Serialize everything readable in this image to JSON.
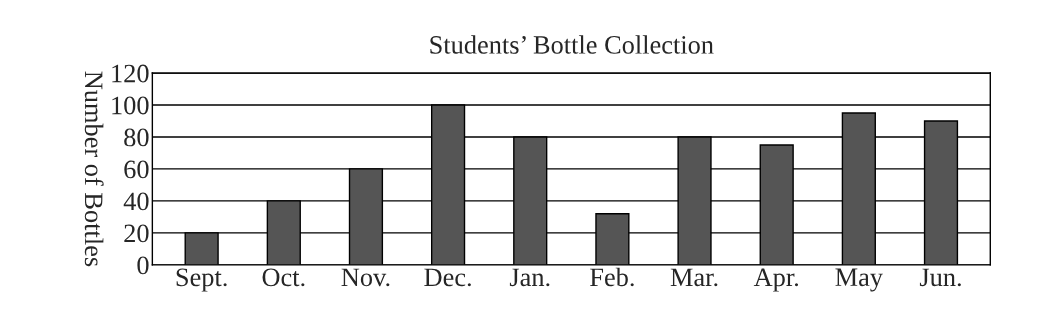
{
  "chart_data": {
    "type": "bar",
    "title": "Students’ Bottle Collection",
    "ylabel": "Number of Bottles",
    "categories": [
      "Sept.",
      "Oct.",
      "Nov.",
      "Dec.",
      "Jan.",
      "Feb.",
      "Mar.",
      "Apr.",
      "May",
      "Jun."
    ],
    "values": [
      20,
      40,
      60,
      100,
      80,
      32,
      80,
      75,
      95,
      90
    ],
    "color": "#555555",
    "ylim": [
      0,
      120
    ],
    "yticks": [
      0,
      20,
      40,
      60,
      80,
      100,
      120
    ],
    "grid": "y"
  }
}
